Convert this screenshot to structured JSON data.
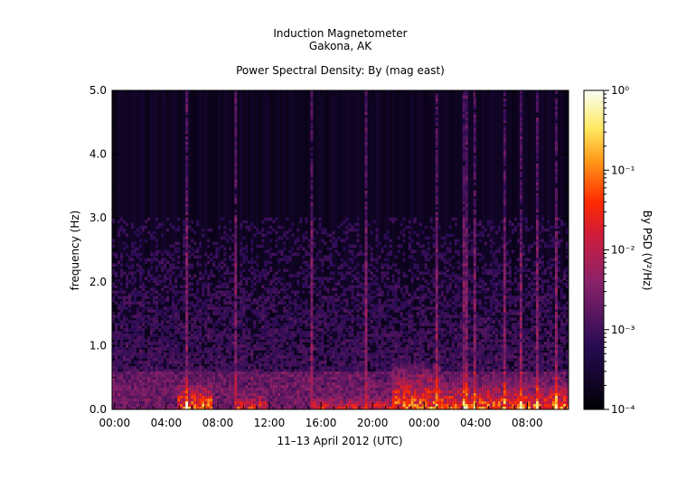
{
  "chart_data": {
    "type": "heatmap",
    "title_lines": [
      "Induction Magnetometer",
      "Gakona, AK"
    ],
    "subtitle": "Power Spectral Density: By (mag east)",
    "xlabel": "11–13 April 2012 (UTC)",
    "ylabel": "frequency (Hz)",
    "x_tick_labels": [
      "00:00",
      "04:00",
      "08:00",
      "12:00",
      "16:00",
      "20:00",
      "00:00",
      "04:00",
      "08:00"
    ],
    "x_range_hours": [
      -0.2,
      35.2
    ],
    "x_tick_hours": [
      0,
      4,
      8,
      12,
      16,
      20,
      24,
      28,
      32
    ],
    "y_tick_labels": [
      "0.0",
      "1.0",
      "2.0",
      "3.0",
      "4.0",
      "5.0"
    ],
    "y_tick_values": [
      0,
      1,
      2,
      3,
      4,
      5
    ],
    "ylim": [
      0,
      5
    ],
    "colorbar": {
      "label": "By PSD (V²/Hz)",
      "scale": "log",
      "range": [
        0.0001,
        1
      ],
      "tick_labels": [
        "10⁻⁴",
        "10⁻³",
        "10⁻²",
        "10⁻¹",
        "10⁰"
      ]
    },
    "bursts": [
      {
        "start": 4.8,
        "end": 7.7,
        "fmax": 0.45,
        "level": 0.9
      },
      {
        "start": 9.5,
        "end": 11.8,
        "fmax": 0.35,
        "level": 0.75
      },
      {
        "start": 15.3,
        "end": 21.5,
        "fmax": 0.3,
        "level": 0.7
      },
      {
        "start": 21.5,
        "end": 25.4,
        "fmax": 0.7,
        "level": 0.85
      },
      {
        "start": 25.4,
        "end": 35.2,
        "fmax": 0.5,
        "level": 0.85
      }
    ],
    "vertical_streaks_hours": [
      5.6,
      9.3,
      15.2,
      19.5,
      25.0,
      27.2,
      28.0,
      30.2,
      31.5,
      32.8,
      34.2
    ]
  }
}
